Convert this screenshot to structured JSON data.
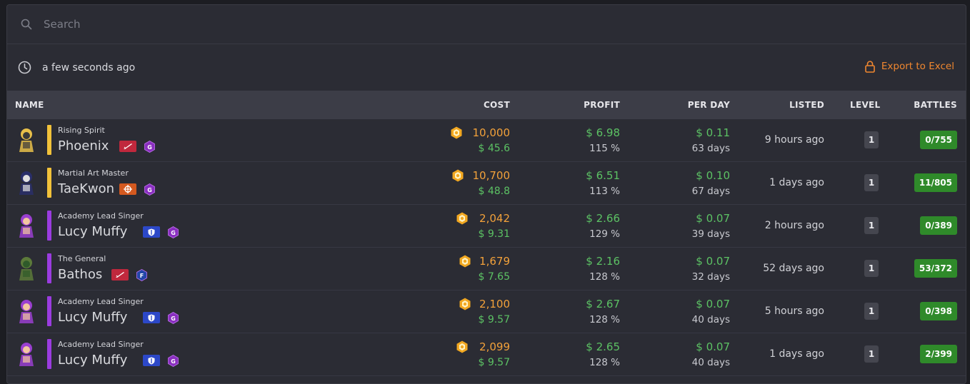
{
  "search": {
    "placeholder": "Search"
  },
  "status": {
    "updated": "a few seconds ago",
    "export_label": "Export to Excel"
  },
  "columns": {
    "name": "NAME",
    "cost": "COST",
    "profit": "PROFIT",
    "per_day": "PER DAY",
    "listed": "LISTED",
    "level": "LEVEL",
    "battles": "BATTLES"
  },
  "colors": {
    "legendary": "#f2c23a",
    "epic": "#9b3ce0",
    "accent": "#f0872f"
  },
  "rows": [
    {
      "title": "Rising Spirit",
      "name": "Phoenix",
      "rarity": "legendary",
      "class_icon": "attack-class-icon",
      "class_color": "#c0283d",
      "tier": "G",
      "tier_color": "#8a2fc0",
      "cost": "10,000",
      "cost_usd": "$ 45.6",
      "profit": "$ 6.98",
      "profit_pct": "115 %",
      "per_day": "$ 0.11",
      "days": "63 days",
      "listed": "9 hours ago",
      "level": "1",
      "battles": "0/755"
    },
    {
      "title": "Martial Art Master",
      "name": "TaeKwon",
      "rarity": "legendary",
      "class_icon": "target-class-icon",
      "class_color": "#d4591f",
      "tier": "G",
      "tier_color": "#8a2fc0",
      "cost": "10,700",
      "cost_usd": "$ 48.8",
      "profit": "$ 6.51",
      "profit_pct": "113 %",
      "per_day": "$ 0.10",
      "days": "67 days",
      "listed": "1 days ago",
      "level": "1",
      "battles": "11/805"
    },
    {
      "title": "Academy Lead Singer",
      "name": "Lucy Muffy",
      "rarity": "epic",
      "class_icon": "shield-class-icon",
      "class_color": "#2c48c8",
      "tier": "G",
      "tier_color": "#8a2fc0",
      "cost": "2,042",
      "cost_usd": "$ 9.31",
      "profit": "$ 2.66",
      "profit_pct": "129 %",
      "per_day": "$ 0.07",
      "days": "39 days",
      "listed": "2 hours ago",
      "level": "1",
      "battles": "0/389"
    },
    {
      "title": "The General",
      "name": "Bathos",
      "rarity": "epic",
      "class_icon": "attack-class-icon",
      "class_color": "#c0283d",
      "tier": "F",
      "tier_color": "#2346a8",
      "cost": "1,679",
      "cost_usd": "$ 7.65",
      "profit": "$ 2.16",
      "profit_pct": "128 %",
      "per_day": "$ 0.07",
      "days": "32 days",
      "listed": "52 days ago",
      "level": "1",
      "battles": "53/372"
    },
    {
      "title": "Academy Lead Singer",
      "name": "Lucy Muffy",
      "rarity": "epic",
      "class_icon": "shield-class-icon",
      "class_color": "#2c48c8",
      "tier": "G",
      "tier_color": "#8a2fc0",
      "cost": "2,100",
      "cost_usd": "$ 9.57",
      "profit": "$ 2.67",
      "profit_pct": "128 %",
      "per_day": "$ 0.07",
      "days": "40 days",
      "listed": "5 hours ago",
      "level": "1",
      "battles": "0/398"
    },
    {
      "title": "Academy Lead Singer",
      "name": "Lucy Muffy",
      "rarity": "epic",
      "class_icon": "shield-class-icon",
      "class_color": "#2c48c8",
      "tier": "G",
      "tier_color": "#8a2fc0",
      "cost": "2,099",
      "cost_usd": "$ 9.57",
      "profit": "$ 2.65",
      "profit_pct": "128 %",
      "per_day": "$ 0.07",
      "days": "40 days",
      "listed": "1 days ago",
      "level": "1",
      "battles": "2/399"
    }
  ]
}
